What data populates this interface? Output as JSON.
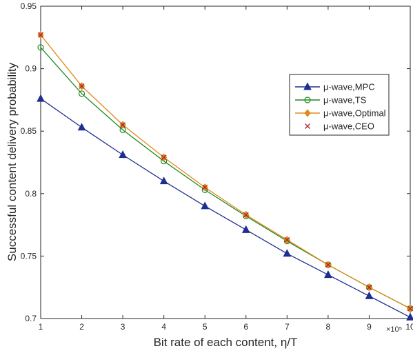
{
  "chart_data": {
    "type": "line",
    "title": "",
    "xlabel": "Bit rate of each content, η/T",
    "ylabel": "Successful content delivery probability",
    "x_multiplier_label": "×10⁵",
    "x": [
      1,
      2,
      3,
      4,
      5,
      6,
      7,
      8,
      9,
      10
    ],
    "xlim": [
      1,
      10
    ],
    "ylim": [
      0.7,
      0.95
    ],
    "x_ticks": [
      "1",
      "2",
      "3",
      "4",
      "5",
      "6",
      "7",
      "8",
      "9",
      "10"
    ],
    "y_ticks": [
      "0.7",
      "0.75",
      "0.8",
      "0.85",
      "0.9",
      "0.95"
    ],
    "grid": false,
    "legend_position": "right",
    "series": [
      {
        "name": "μ-wave,MPC",
        "color": "#1f2f8f",
        "marker": "triangle",
        "values": [
          0.876,
          0.853,
          0.831,
          0.81,
          0.79,
          0.771,
          0.752,
          0.735,
          0.718,
          0.701
        ]
      },
      {
        "name": "μ-wave,TS",
        "color": "#1e8a1e",
        "marker": "circle",
        "values": [
          0.917,
          0.88,
          0.851,
          0.826,
          0.803,
          0.782,
          0.762,
          0.743,
          0.725,
          0.708
        ]
      },
      {
        "name": "μ-wave,Optimal",
        "color": "#e08a1c",
        "marker": "diamond",
        "values": [
          0.927,
          0.886,
          0.855,
          0.829,
          0.805,
          0.783,
          0.763,
          0.743,
          0.725,
          0.708
        ]
      },
      {
        "name": "μ-wave,CEO",
        "color": "#b0282c",
        "marker": "cross",
        "line": false,
        "values": [
          0.927,
          0.886,
          0.855,
          0.829,
          0.805,
          0.783,
          0.763,
          0.743,
          0.725,
          0.708
        ]
      }
    ]
  }
}
